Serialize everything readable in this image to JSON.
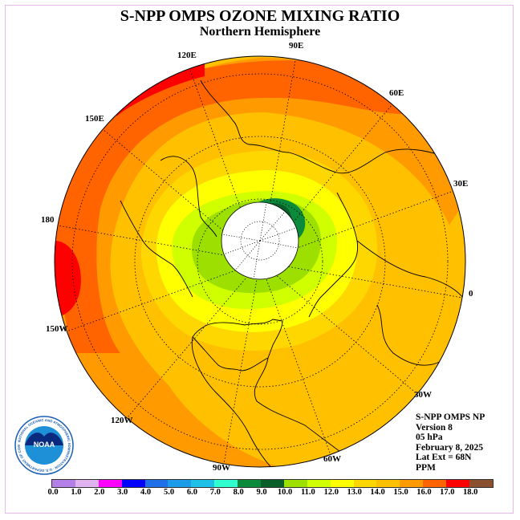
{
  "title": "S-NPP OMPS OZONE MIXING RATIO",
  "subtitle": "Northern Hemisphere",
  "lon_labels": {
    "e90": "90E",
    "e120": "120E",
    "e60": "60E",
    "e150": "150E",
    "e30": "30E",
    "w180": "180",
    "zero": "0",
    "w150": "150W",
    "w30": "30W",
    "w120": "120W",
    "w60": "60W",
    "w90": "90W"
  },
  "info": {
    "line1": "S-NPP OMPS NP",
    "line2": "Version 8",
    "line3": "05 hPa",
    "line4": "February 8, 2025",
    "line5": "Lat Ext = 68N",
    "line6": "PPM"
  },
  "colorbar": {
    "colors": [
      "#b57fe8",
      "#e0b3f0",
      "#ff00ff",
      "#0000ff",
      "#1e6fe8",
      "#1b9be8",
      "#1ec0e8",
      "#30ffd0",
      "#0a8a3a",
      "#0a5e2a",
      "#9de000",
      "#d0ff00",
      "#ffff00",
      "#ffd700",
      "#ffc000",
      "#ff9a00",
      "#ff6400",
      "#ff0000",
      "#8a5030"
    ],
    "ticks": [
      "0.0",
      "1.0",
      "2.0",
      "3.0",
      "4.0",
      "5.0",
      "6.0",
      "7.0",
      "8.0",
      "9.0",
      "10.0",
      "11.0",
      "12.0",
      "13.0",
      "14.0",
      "15.0",
      "16.0",
      "17.0",
      "18.0"
    ]
  },
  "logo": {
    "text": "NOAA",
    "ring_text": "NATIONAL OCEANIC AND ATMOSPHERIC ADMINISTRATION · U.S. DEPARTMENT OF COMMERCE"
  }
}
